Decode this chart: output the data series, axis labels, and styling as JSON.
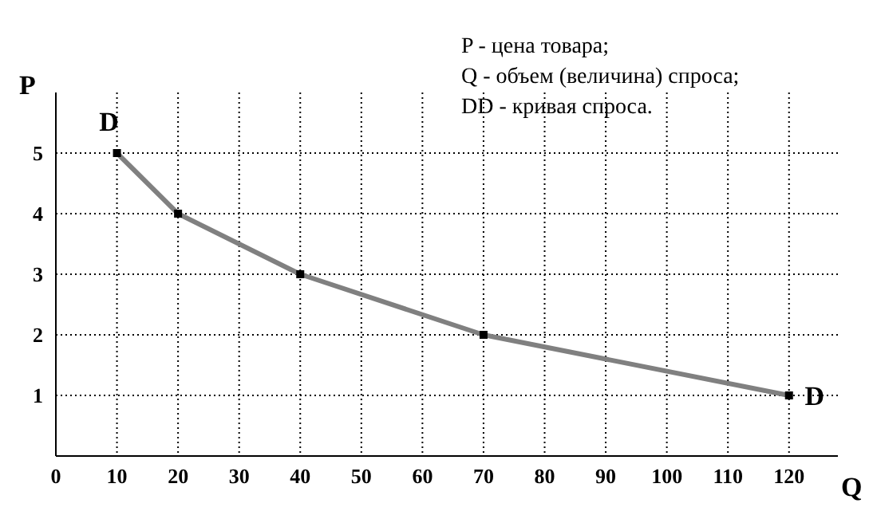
{
  "chart_data": {
    "type": "line",
    "xlabel": "Q",
    "ylabel": "P",
    "x": [
      10,
      20,
      40,
      70,
      120
    ],
    "series": [
      {
        "color": "#808080",
        "values": [
          5,
          4,
          3,
          2,
          1
        ]
      }
    ],
    "xlim": [
      0,
      128
    ],
    "ylim": [
      0,
      6
    ],
    "xticks": [
      0,
      10,
      20,
      30,
      40,
      50,
      60,
      70,
      80,
      90,
      100,
      110,
      120
    ],
    "yticks": [
      1,
      2,
      3,
      4,
      5
    ],
    "grid": true,
    "marker": "square",
    "line_style": "solid",
    "annotations": [
      {
        "text": "D",
        "x": 10,
        "y": 5
      },
      {
        "text": "D",
        "x": 120,
        "y": 1
      },
      "P - цена товара;",
      "Q - объем (величина) спроса;",
      "DD - кривая спроса."
    ]
  }
}
